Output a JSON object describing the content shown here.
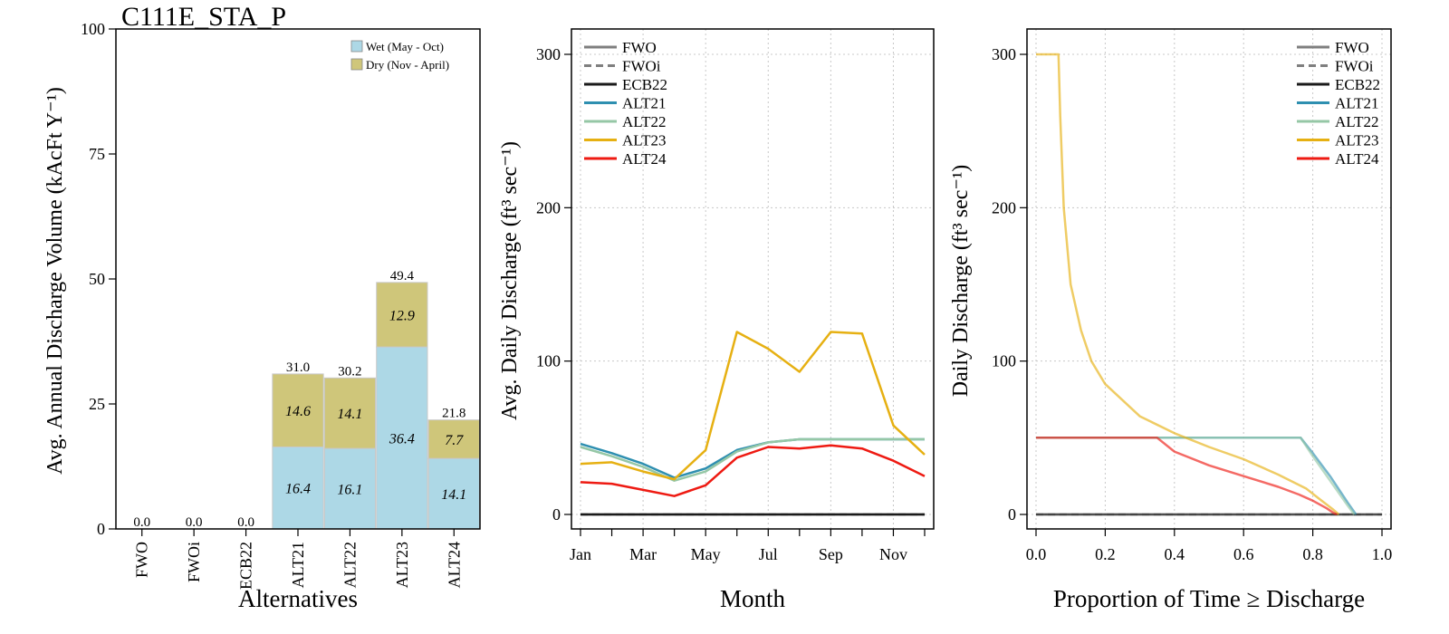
{
  "colors": {
    "wet": "#ADD8E6",
    "dry": "#CFC67A",
    "FWO": "#7f7f7f",
    "FWOi": "#7f7f7f",
    "ECB22": "#1a1a1a",
    "ALT21": "#2E8FB0",
    "ALT22": "#95C7A6",
    "ALT23": "#E6B012",
    "ALT24": "#EE1A12"
  },
  "chart_data": [
    {
      "type": "bar",
      "title": "C111E_STA_P",
      "xlabel": "Alternatives",
      "ylabel": "Avg. Annual Discharge Volume (kAcFt Y⁻¹)",
      "ylim": [
        0,
        100
      ],
      "yticks": [
        "0",
        "25",
        "50",
        "75",
        "100"
      ],
      "categories": [
        "FWO",
        "FWOi",
        "ECB22",
        "ALT21",
        "ALT22",
        "ALT23",
        "ALT24"
      ],
      "series": [
        {
          "name": "Wet (May - Oct)",
          "values": [
            0,
            0,
            0,
            16.4,
            16.1,
            36.4,
            14.1
          ],
          "labels": [
            "",
            "",
            "",
            "16.4",
            "16.1",
            "36.4",
            "14.1"
          ]
        },
        {
          "name": "Dry (Nov - April)",
          "values": [
            0,
            0,
            0,
            14.6,
            14.1,
            12.9,
            7.7
          ],
          "labels": [
            "",
            "",
            "",
            "14.6",
            "14.1",
            "12.9",
            "7.7"
          ]
        }
      ],
      "totals": [
        "0.0",
        "0.0",
        "0.0",
        "31.0",
        "30.2",
        "49.4",
        "21.8"
      ],
      "legend": "top-right",
      "grid": false
    },
    {
      "type": "line",
      "xlabel": "Month",
      "ylabel": "Avg. Daily Discharge (ft³ sec⁻¹)",
      "ylim": [
        0,
        300
      ],
      "yticks": [
        "0",
        "100",
        "200",
        "300"
      ],
      "xticks": [
        "Jan",
        "Mar",
        "May",
        "Jul",
        "Sep",
        "Nov"
      ],
      "x": [
        1,
        2,
        3,
        4,
        5,
        6,
        7,
        8,
        9,
        10,
        11,
        12
      ],
      "legend": "top-left",
      "grid": true,
      "series": [
        {
          "name": "FWO",
          "dash": false,
          "values": [
            0,
            0,
            0,
            0,
            0,
            0,
            0,
            0,
            0,
            0,
            0,
            0
          ]
        },
        {
          "name": "FWOi",
          "dash": true,
          "values": [
            0,
            0,
            0,
            0,
            0,
            0,
            0,
            0,
            0,
            0,
            0,
            0
          ]
        },
        {
          "name": "ECB22",
          "dash": false,
          "values": [
            0,
            0,
            0,
            0,
            0,
            0,
            0,
            0,
            0,
            0,
            0,
            0
          ]
        },
        {
          "name": "ALT21",
          "dash": false,
          "values": [
            46,
            40,
            33,
            24,
            30,
            42,
            47,
            49,
            49,
            49,
            49,
            49
          ]
        },
        {
          "name": "ALT22",
          "dash": false,
          "values": [
            44,
            38,
            31,
            22,
            28,
            41,
            47,
            49,
            49,
            49,
            49,
            49
          ]
        },
        {
          "name": "ALT23",
          "dash": false,
          "values": [
            33,
            34,
            28,
            23,
            42,
            119,
            108,
            93,
            119,
            118,
            58,
            39
          ]
        },
        {
          "name": "ALT24",
          "dash": false,
          "values": [
            21,
            20,
            16,
            12,
            19,
            37,
            44,
            43,
            45,
            43,
            35,
            25
          ]
        }
      ]
    },
    {
      "type": "line",
      "xlabel": "Proportion of Time ≥ Discharge",
      "ylabel": "Daily Discharge (ft³ sec⁻¹)",
      "ylim": [
        0,
        300
      ],
      "xlim": [
        0,
        1
      ],
      "yticks": [
        "0",
        "100",
        "200",
        "300"
      ],
      "xticks": [
        "0.0",
        "0.2",
        "0.4",
        "0.6",
        "0.8",
        "1.0"
      ],
      "legend": "top-right",
      "grid": true,
      "series": [
        {
          "name": "FWO",
          "dash": false,
          "points": [
            [
              0,
              0
            ],
            [
              1,
              0
            ]
          ]
        },
        {
          "name": "FWOi",
          "dash": true,
          "points": [
            [
              0,
              0
            ],
            [
              1,
              0
            ]
          ]
        },
        {
          "name": "ECB22",
          "dash": false,
          "points": [
            [
              0,
              0
            ],
            [
              1,
              0
            ]
          ]
        },
        {
          "name": "ALT21",
          "dash": false,
          "points": [
            [
              0,
              50
            ],
            [
              0.765,
              50
            ],
            [
              0.8,
              40
            ],
            [
              0.85,
              25
            ],
            [
              0.9,
              8
            ],
            [
              0.925,
              0
            ]
          ]
        },
        {
          "name": "ALT22",
          "dash": false,
          "points": [
            [
              0,
              50
            ],
            [
              0.765,
              50
            ],
            [
              0.8,
              38
            ],
            [
              0.85,
              22
            ],
            [
              0.9,
              6
            ],
            [
              0.92,
              0
            ]
          ]
        },
        {
          "name": "ALT23",
          "dash": false,
          "points": [
            [
              0,
              300
            ],
            [
              0.065,
              300
            ],
            [
              0.07,
              260
            ],
            [
              0.08,
              200
            ],
            [
              0.1,
              150
            ],
            [
              0.13,
              120
            ],
            [
              0.16,
              100
            ],
            [
              0.2,
              85
            ],
            [
              0.3,
              64
            ],
            [
              0.4,
              53
            ],
            [
              0.5,
              44
            ],
            [
              0.6,
              36
            ],
            [
              0.7,
              26
            ],
            [
              0.78,
              17
            ],
            [
              0.82,
              10
            ],
            [
              0.86,
              3
            ],
            [
              0.875,
              0
            ]
          ]
        },
        {
          "name": "ALT24",
          "dash": false,
          "points": [
            [
              0,
              50
            ],
            [
              0.35,
              50
            ],
            [
              0.4,
              41
            ],
            [
              0.5,
              32
            ],
            [
              0.6,
              25
            ],
            [
              0.7,
              18
            ],
            [
              0.76,
              13
            ],
            [
              0.8,
              9
            ],
            [
              0.84,
              4
            ],
            [
              0.86,
              1
            ],
            [
              0.87,
              0
            ]
          ]
        }
      ]
    }
  ]
}
